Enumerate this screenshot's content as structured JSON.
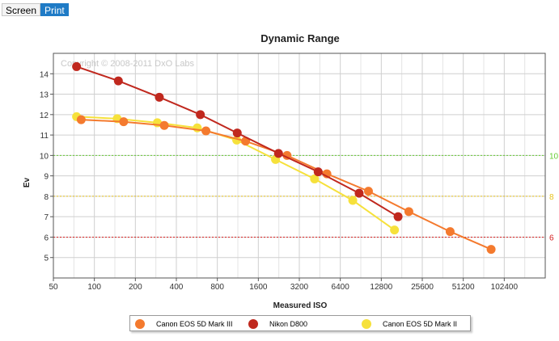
{
  "tabs": {
    "screen": "Screen",
    "print": "Print"
  },
  "colors": {
    "canon_5d3": "#f47a2e",
    "nikon_d800": "#c0281e",
    "canon_5d2": "#f6e13b",
    "ref_10": "#66cc33",
    "ref_8": "#e7c21a",
    "ref_6": "#d42020"
  },
  "chart_data": {
    "type": "line",
    "title": "Dynamic Range",
    "xlabel": "Measured ISO",
    "ylabel": "Ev",
    "watermark": "Copyright © 2008-2011 DxO Labs",
    "x_scale": "log2",
    "xlim": [
      50,
      204800
    ],
    "ylim": [
      4,
      15
    ],
    "x_ticks": [
      "50",
      "100",
      "200",
      "400",
      "800",
      "1600",
      "3200",
      "6400",
      "12800",
      "25600",
      "51200",
      "102400"
    ],
    "y_ticks": [
      "5",
      "6",
      "7",
      "8",
      "9",
      "10",
      "11",
      "12",
      "13",
      "14"
    ],
    "grid": true,
    "legend_position": "bottom",
    "reference_lines": [
      {
        "value": 10,
        "label": "10",
        "color": "#66cc33"
      },
      {
        "value": 8,
        "label": "8",
        "color": "#e7c21a"
      },
      {
        "value": 6,
        "label": "6",
        "color": "#d42020"
      }
    ],
    "series": [
      {
        "name": "Canon EOS 5D Mark III",
        "color": "#f47a2e",
        "x": [
          80,
          164,
          326,
          660,
          1290,
          2600,
          5100,
          10300,
          20400,
          41000,
          82000
        ],
        "y": [
          11.75,
          11.65,
          11.47,
          11.2,
          10.7,
          10.0,
          9.1,
          8.25,
          7.25,
          6.27,
          5.4
        ]
      },
      {
        "name": "Nikon D800",
        "color": "#c0281e",
        "x": [
          74,
          150,
          300,
          600,
          1120,
          2250,
          4400,
          8800,
          17000
        ],
        "y": [
          14.35,
          13.65,
          12.85,
          12.0,
          11.1,
          10.1,
          9.2,
          8.15,
          7.0
        ]
      },
      {
        "name": "Canon EOS 5D Mark II",
        "color": "#f6e13b",
        "x": [
          74,
          147,
          290,
          570,
          1110,
          2140,
          4140,
          7900,
          16000
        ],
        "y": [
          11.9,
          11.8,
          11.6,
          11.35,
          10.75,
          9.8,
          8.85,
          7.8,
          6.35
        ]
      }
    ]
  }
}
